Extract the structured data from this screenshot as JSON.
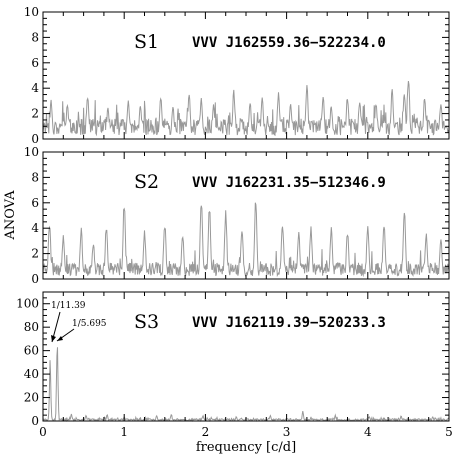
{
  "chart_data": {
    "type": "line",
    "xlabel": "frequency [c/d]",
    "ylabel": "ANOVA",
    "xlim": [
      0,
      5
    ],
    "x_ticks": [
      0,
      1,
      2,
      3,
      4,
      5
    ],
    "series_color": "#999999",
    "panels": [
      {
        "label": "S1",
        "star": "VVV J162559.36−522234.0",
        "ylim": [
          0,
          10
        ],
        "y_ticks": [
          0,
          2,
          4,
          6,
          8,
          10
        ],
        "peak_frequencies": [
          0.1,
          0.3,
          0.55,
          0.8,
          1.05,
          1.2,
          1.45,
          1.6,
          1.8,
          1.95,
          2.1,
          2.35,
          2.55,
          2.7,
          2.9,
          3.05,
          3.25,
          3.45,
          3.55,
          3.75,
          3.9,
          4.1,
          4.3,
          4.45,
          4.5,
          4.7,
          4.9
        ],
        "peak_values": [
          3.2,
          2.8,
          3.6,
          2.6,
          3.1,
          2.9,
          3.5,
          2.7,
          3.8,
          3.3,
          2.9,
          3.9,
          3.0,
          3.4,
          3.8,
          2.9,
          4.5,
          3.7,
          2.8,
          3.6,
          3.3,
          3.0,
          4.2,
          4.0,
          5.2,
          3.5,
          3.1
        ],
        "noise_mean": 1.0
      },
      {
        "label": "S2",
        "star": "VVV J162231.35−512346.9",
        "ylim": [
          0,
          10
        ],
        "y_ticks": [
          0,
          2,
          4,
          6,
          8,
          10
        ],
        "peak_frequencies": [
          0.08,
          0.25,
          0.47,
          0.62,
          0.78,
          1.0,
          1.25,
          1.5,
          1.72,
          1.95,
          2.05,
          2.25,
          2.45,
          2.62,
          2.95,
          3.15,
          3.3,
          3.55,
          3.75,
          4.0,
          4.2,
          4.45,
          4.72,
          4.9
        ],
        "peak_values": [
          4.8,
          3.5,
          4.2,
          3.0,
          4.3,
          6.3,
          3.9,
          4.5,
          3.6,
          6.5,
          6.1,
          5.5,
          4.2,
          6.6,
          4.8,
          3.9,
          4.3,
          4.1,
          4.0,
          4.4,
          4.6,
          5.8,
          3.8,
          3.2
        ],
        "noise_mean": 0.8
      },
      {
        "label": "S3",
        "star": "VVV J162119.39−520233.3",
        "ylim": [
          0,
          110
        ],
        "y_ticks": [
          0,
          20,
          40,
          60,
          80,
          100
        ],
        "peak_frequencies": [
          0.0878,
          0.1756,
          0.35,
          0.53,
          0.79,
          1.0,
          1.4,
          1.58,
          1.97,
          2.38,
          2.8,
          3.2,
          3.6,
          4.02,
          4.41,
          4.8
        ],
        "peak_values": [
          55,
          73,
          6,
          5,
          6,
          4,
          5,
          6,
          5,
          4,
          5,
          9,
          5,
          4,
          5,
          4
        ],
        "noise_mean": 1.2,
        "annotations": [
          "1/11.39",
          "1/5.695"
        ]
      }
    ]
  }
}
